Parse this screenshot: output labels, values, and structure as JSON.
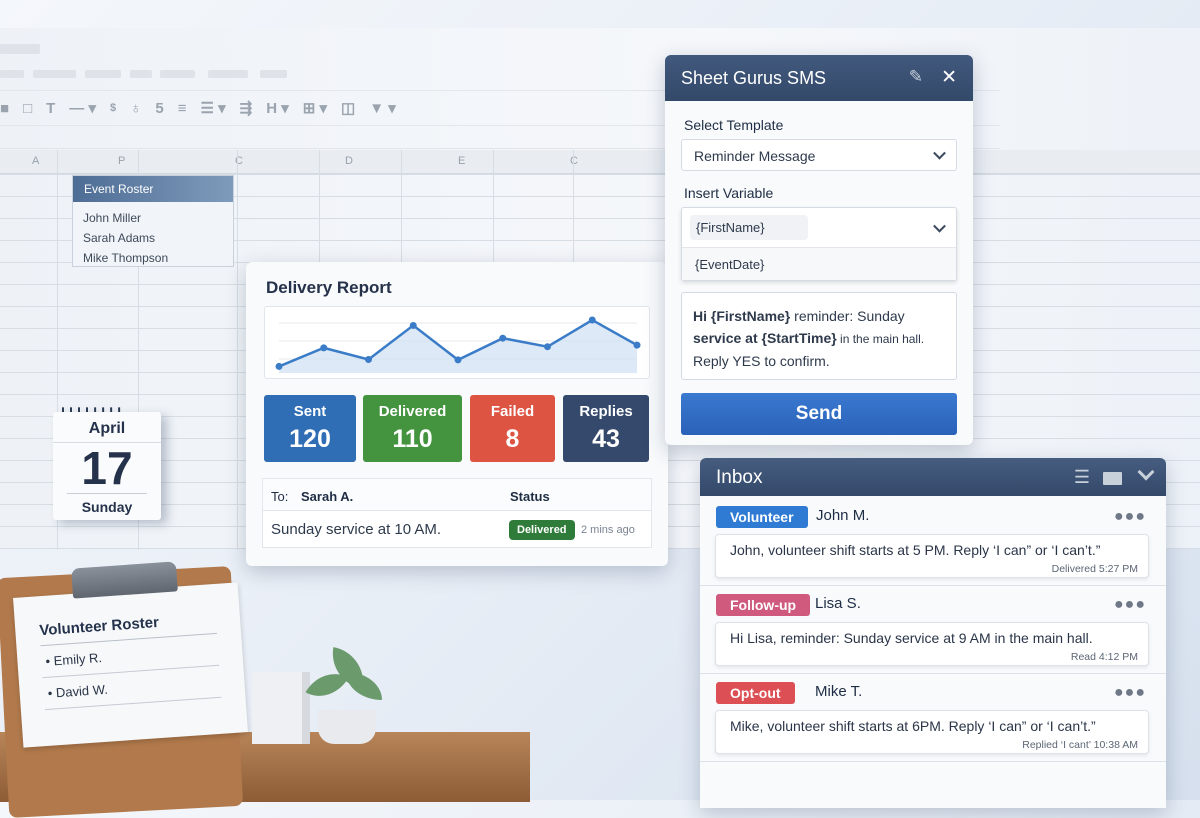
{
  "spreadsheet": {
    "columns": [
      "A",
      "P",
      "C",
      "D",
      "E",
      "C"
    ],
    "toolbar_glyphs": [
      "lock",
      "square",
      "T",
      "—",
      "$",
      "5",
      "≡",
      "H"
    ],
    "roster": {
      "title": "Event Roster",
      "names": [
        "John Miller",
        "Sarah Adams",
        "Mike Thompson"
      ]
    }
  },
  "delivery_report": {
    "title": "Delivery Report",
    "chart_data": {
      "type": "area",
      "values": [
        17,
        65,
        35,
        123,
        34,
        90,
        68,
        137,
        72
      ],
      "grid": true,
      "color": "#3a7cc7"
    },
    "stats": [
      {
        "label": "Sent",
        "value": "120",
        "color": "#2f6db5"
      },
      {
        "label": "Delivered",
        "value": "110",
        "color": "#44933f"
      },
      {
        "label": "Failed",
        "value": "8",
        "color": "#de5442"
      },
      {
        "label": "Replies",
        "value": "43",
        "color": "#34496b"
      }
    ],
    "table": {
      "to_label": "To:",
      "to_value": "Sarah A.",
      "status_header": "Status",
      "message": "Sunday service at 10 AM.",
      "status": "Delivered",
      "time": "2 mins ago"
    }
  },
  "sms_dialog": {
    "title": "Sheet Gurus SMS",
    "select_template_label": "Select Template",
    "template_value": "Reminder Message",
    "insert_variable_label": "Insert Variable",
    "variable_value": "{FirstName}",
    "variable_option": "{EventDate}",
    "message": {
      "p1": "Hi {FirstName}",
      "p2": " reminder: Sunday",
      "p3": "service at {StartTime}",
      "p4": " in the main hall.",
      "p5": "Reply YES to confirm."
    },
    "send_label": "Send"
  },
  "inbox": {
    "title": "Inbox",
    "messages": [
      {
        "tag": "Volunteer",
        "tag_color": "#2f7bd4",
        "name": "John M.",
        "text": "John, volunteer shift starts at 5 PM. Reply ‘I can” or ‘I can’t.”",
        "meta": "Delivered 5:27 PM"
      },
      {
        "tag": "Follow-up",
        "tag_color": "#cf5a7e",
        "name": "Lisa S.",
        "text": "Hi Lisa, reminder: Sunday service at 9 AM in the main hall.",
        "meta": "Read 4:12 PM"
      },
      {
        "tag": "Opt-out",
        "tag_color": "#dc4f55",
        "name": "Mike T.",
        "text": "Mike, volunteer shift starts at 6PM. Reply ‘I can” or ‘I can’t.”",
        "meta": "Replied ‘I cant’ 10:38 AM"
      }
    ]
  },
  "calendar": {
    "month": "April",
    "day": "17",
    "weekday": "Sunday"
  },
  "clipboard": {
    "title": "Volunteer Roster",
    "names": [
      "Emily R.",
      "David W."
    ]
  }
}
